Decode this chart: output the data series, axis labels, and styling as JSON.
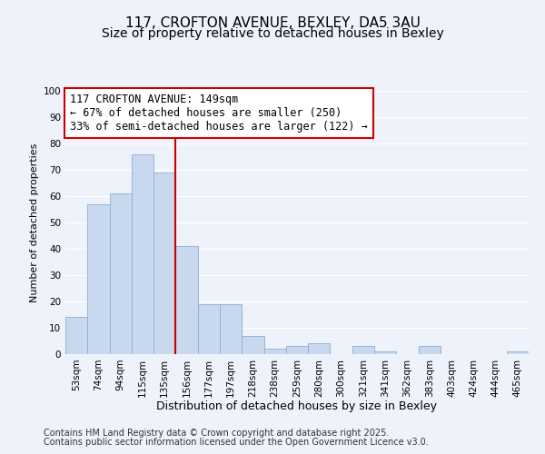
{
  "title": "117, CROFTON AVENUE, BEXLEY, DA5 3AU",
  "subtitle": "Size of property relative to detached houses in Bexley",
  "xlabel": "Distribution of detached houses by size in Bexley",
  "ylabel": "Number of detached properties",
  "bins": [
    "53sqm",
    "74sqm",
    "94sqm",
    "115sqm",
    "135sqm",
    "156sqm",
    "177sqm",
    "197sqm",
    "218sqm",
    "238sqm",
    "259sqm",
    "280sqm",
    "300sqm",
    "321sqm",
    "341sqm",
    "362sqm",
    "383sqm",
    "403sqm",
    "424sqm",
    "444sqm",
    "465sqm"
  ],
  "values": [
    14,
    57,
    61,
    76,
    69,
    41,
    19,
    19,
    7,
    2,
    3,
    4,
    0,
    3,
    1,
    0,
    3,
    0,
    0,
    0,
    1
  ],
  "bar_color": "#c8d8ee",
  "bar_edge_color": "#8ab0d0",
  "bar_width": 1.0,
  "vline_x_idx": 5,
  "vline_color": "#cc0000",
  "ylim": [
    0,
    100
  ],
  "yticks": [
    0,
    10,
    20,
    30,
    40,
    50,
    60,
    70,
    80,
    90,
    100
  ],
  "annotation_line1": "117 CROFTON AVENUE: 149sqm",
  "annotation_line2": "← 67% of detached houses are smaller (250)",
  "annotation_line3": "33% of semi-detached houses are larger (122) →",
  "footer1": "Contains HM Land Registry data © Crown copyright and database right 2025.",
  "footer2": "Contains public sector information licensed under the Open Government Licence v3.0.",
  "background_color": "#eef2fa",
  "grid_color": "#ffffff",
  "title_fontsize": 11,
  "subtitle_fontsize": 10,
  "xlabel_fontsize": 9,
  "ylabel_fontsize": 8,
  "tick_fontsize": 7.5,
  "annotation_fontsize": 8.5,
  "footer_fontsize": 7
}
